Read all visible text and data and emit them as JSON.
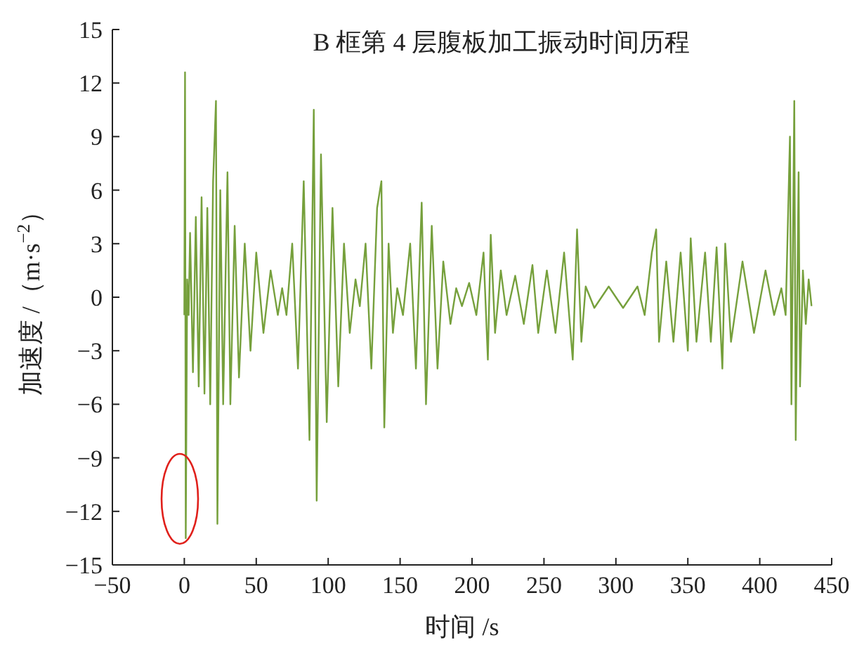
{
  "chart_data": {
    "type": "line",
    "title": "B 框第 4 层腹板加工振动时间历程",
    "xlabel": "时间 /s",
    "ylabel": "加速度 /（m·s$^{−2}$）",
    "xlim": [
      -50,
      450
    ],
    "xticks": [
      -50,
      0,
      50,
      100,
      150,
      200,
      250,
      300,
      350,
      400,
      450
    ],
    "ylim": [
      -15,
      15
    ],
    "yticks": [
      -15,
      -12,
      -9,
      -6,
      -3,
      0,
      3,
      6,
      9,
      12,
      15
    ],
    "grid": false,
    "marker": "none",
    "line_style": "solid",
    "series": [
      {
        "color": "#76a03c",
        "x": [
          0,
          0.5,
          1,
          2,
          3,
          4,
          6,
          8,
          10,
          12,
          14,
          16,
          18,
          20,
          22,
          23,
          25,
          27,
          30,
          32,
          35,
          38,
          42,
          46,
          50,
          55,
          60,
          65,
          68,
          71,
          75,
          79,
          83,
          87,
          90,
          92,
          95,
          99,
          103,
          107,
          111,
          115,
          119,
          122,
          126,
          130,
          134,
          137,
          139,
          142,
          145,
          148,
          152,
          157,
          161,
          165,
          168,
          172,
          176,
          180,
          185,
          189,
          193,
          198,
          203,
          208,
          211,
          213,
          216,
          220,
          224,
          230,
          236,
          242,
          246,
          252,
          258,
          264,
          270,
          273,
          276,
          279,
          285,
          295,
          305,
          315,
          320,
          325,
          328,
          330,
          335,
          340,
          345,
          350,
          352,
          356,
          362,
          366,
          370,
          374,
          376,
          380,
          388,
          396,
          404,
          410,
          415,
          418,
          421,
          422,
          424,
          425,
          427,
          428,
          430,
          432,
          434,
          436
        ],
        "values": [
          -1,
          12.6,
          -13.5,
          1,
          -1,
          3.6,
          -4.2,
          4.5,
          -5,
          5.6,
          -5.4,
          5,
          -6,
          6.5,
          11,
          -12.7,
          6,
          -6,
          7,
          -6,
          4,
          -4.5,
          3,
          -3,
          2.5,
          -2,
          1.5,
          -1,
          0.5,
          -1,
          3,
          -4,
          6.5,
          -8,
          10.5,
          -11.4,
          8,
          -7,
          5,
          -5,
          3,
          -2,
          1,
          -0.5,
          3,
          -4,
          5,
          6.5,
          -7.3,
          3,
          -2,
          0.5,
          -1,
          3,
          -4,
          5.3,
          -6,
          4,
          -4,
          2,
          -1.5,
          0.5,
          -0.5,
          0.8,
          -1,
          2.5,
          -3.5,
          3.5,
          -2,
          1.5,
          -1,
          1.2,
          -1.5,
          1.8,
          -2,
          1.5,
          -2,
          2.5,
          -3.5,
          3.8,
          -2.5,
          0.6,
          -0.6,
          0.6,
          -0.6,
          0.6,
          -1,
          2.5,
          3.8,
          -2.5,
          2,
          -2.5,
          2.5,
          -3,
          3.3,
          -2.5,
          2.5,
          -2.5,
          2.8,
          -4,
          3,
          -2.5,
          2,
          -2,
          1.5,
          -1,
          0.5,
          -1,
          9,
          -6,
          11,
          -8,
          7,
          -5,
          1.5,
          -1.5,
          1,
          -0.5
        ]
      }
    ]
  }
}
